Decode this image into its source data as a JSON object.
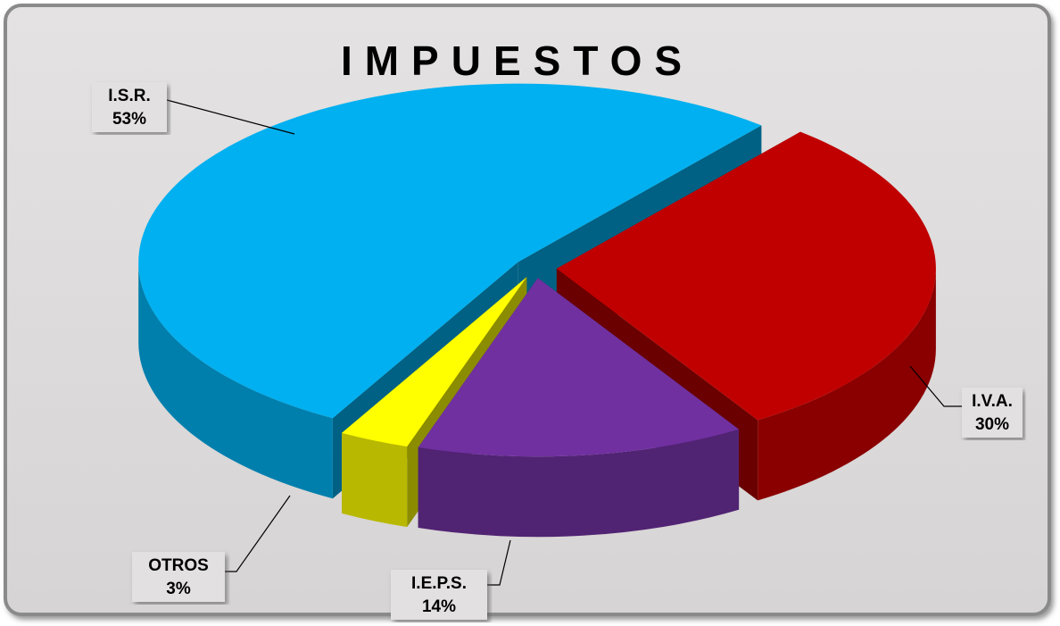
{
  "chart_data": {
    "type": "pie3d",
    "title": "IMPUESTOS",
    "categories": [
      "I.S.R.",
      "I.V.A.",
      "I.E.P.S.",
      "OTROS"
    ],
    "values": [
      53,
      30,
      14,
      3
    ],
    "value_labels": [
      "53%",
      "30%",
      "14%",
      "3%"
    ],
    "colors": [
      "#00b0f0",
      "#c00000",
      "#7030a0",
      "#ffff00"
    ]
  }
}
